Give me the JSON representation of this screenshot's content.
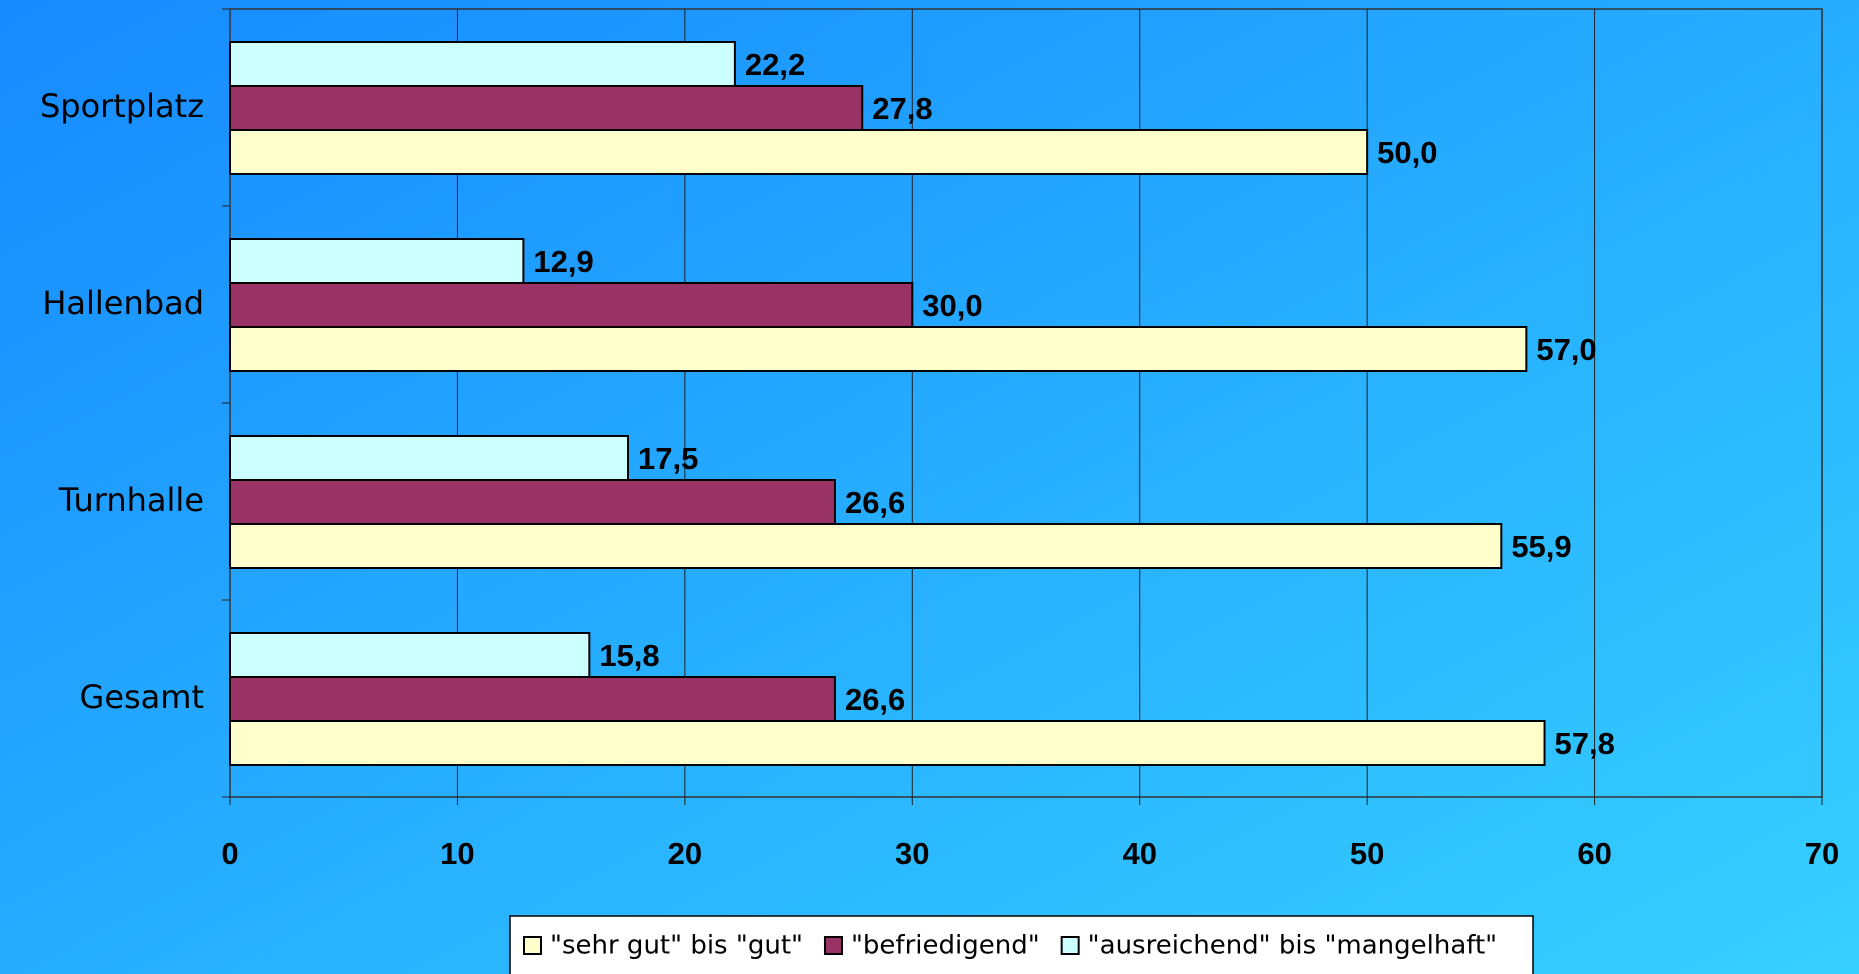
{
  "chart_data": {
    "type": "bar",
    "orientation": "horizontal",
    "categories": [
      "Sportplatz",
      "Hallenbad",
      "Turnhalle",
      "Gesamt"
    ],
    "series": [
      {
        "name": "\"sehr gut\" bis \"gut\"",
        "color": "#ffffcc",
        "values": [
          50.0,
          57.0,
          55.9,
          57.8
        ],
        "value_labels": [
          "50,0",
          "57,0",
          "55,9",
          "57,8"
        ]
      },
      {
        "name": "\"befriedigend\"",
        "color": "#993366",
        "values": [
          27.8,
          30.0,
          26.6,
          26.6
        ],
        "value_labels": [
          "27,8",
          "30,0",
          "26,6",
          "26,6"
        ]
      },
      {
        "name": "\"ausreichend\" bis \"mangelhaft\"",
        "color": "#ccffff",
        "values": [
          22.2,
          12.9,
          17.5,
          15.8
        ],
        "value_labels": [
          "22,2",
          "12,9",
          "17,5",
          "15,8"
        ]
      }
    ],
    "xlim": [
      0,
      70
    ],
    "xticks": [
      0,
      10,
      20,
      30,
      40,
      50,
      60,
      70
    ],
    "grid": true,
    "legend": "bottom"
  }
}
